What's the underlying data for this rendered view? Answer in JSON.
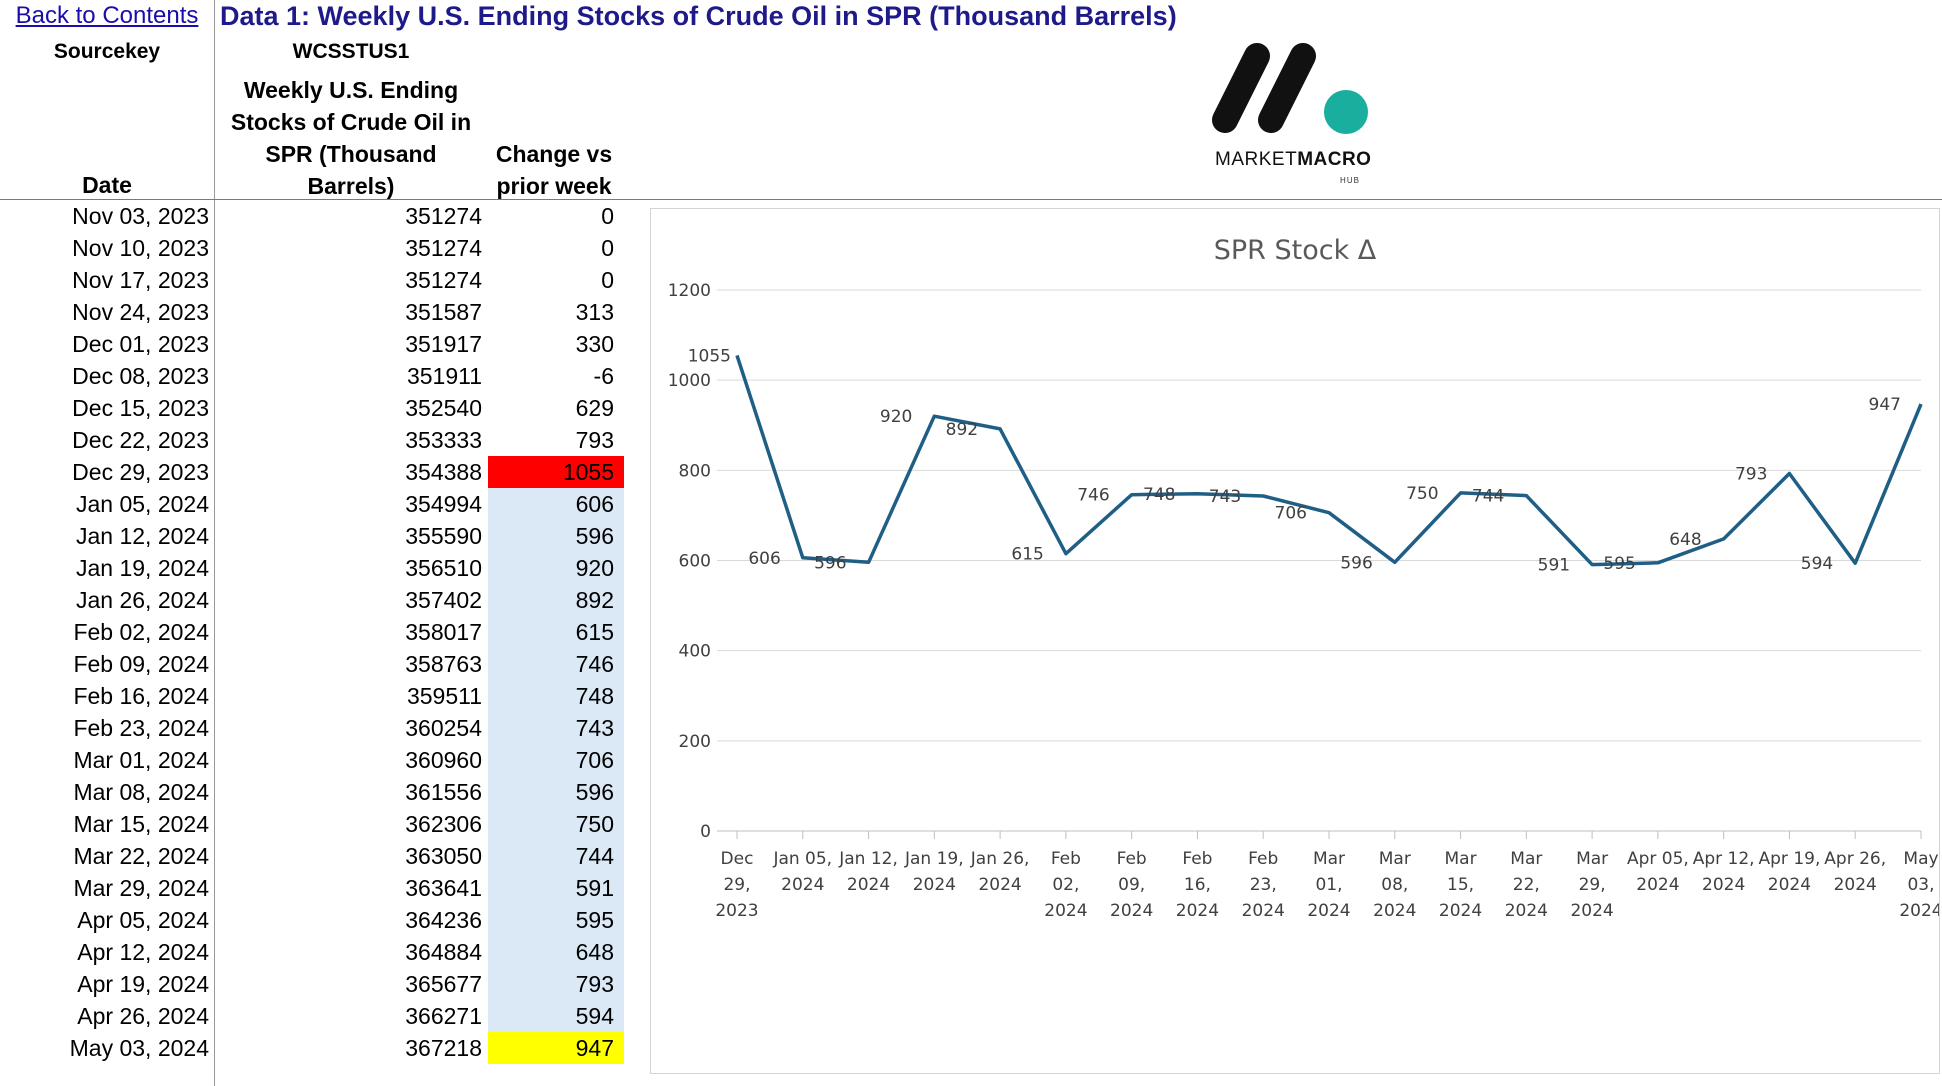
{
  "header": {
    "back_link": "Back to Contents",
    "title": "Data 1: Weekly U.S. Ending Stocks of Crude Oil in SPR  (Thousand Barrels)",
    "sourcekey_label": "Sourcekey",
    "sourcekey_value": "WCSSTUS1"
  },
  "columns": {
    "date": "Date",
    "stocks": [
      "Weekly U.S. Ending",
      "Stocks of Crude Oil in",
      "SPR  (Thousand",
      "Barrels)"
    ],
    "change": [
      "Change vs",
      "prior week"
    ]
  },
  "rows": [
    {
      "date": "Nov 03, 2023",
      "stock": "351274",
      "change": "0",
      "highlight": "none"
    },
    {
      "date": "Nov 10, 2023",
      "stock": "351274",
      "change": "0",
      "highlight": "none"
    },
    {
      "date": "Nov 17, 2023",
      "stock": "351274",
      "change": "0",
      "highlight": "none"
    },
    {
      "date": "Nov 24, 2023",
      "stock": "351587",
      "change": "313",
      "highlight": "none"
    },
    {
      "date": "Dec 01, 2023",
      "stock": "351917",
      "change": "330",
      "highlight": "none"
    },
    {
      "date": "Dec 08, 2023",
      "stock": "351911",
      "change": "-6",
      "highlight": "none"
    },
    {
      "date": "Dec 15, 2023",
      "stock": "352540",
      "change": "629",
      "highlight": "none"
    },
    {
      "date": "Dec 22, 2023",
      "stock": "353333",
      "change": "793",
      "highlight": "none"
    },
    {
      "date": "Dec 29, 2023",
      "stock": "354388",
      "change": "1055",
      "highlight": "red"
    },
    {
      "date": "Jan 05, 2024",
      "stock": "354994",
      "change": "606",
      "highlight": "blue"
    },
    {
      "date": "Jan 12, 2024",
      "stock": "355590",
      "change": "596",
      "highlight": "blue"
    },
    {
      "date": "Jan 19, 2024",
      "stock": "356510",
      "change": "920",
      "highlight": "blue"
    },
    {
      "date": "Jan 26, 2024",
      "stock": "357402",
      "change": "892",
      "highlight": "blue"
    },
    {
      "date": "Feb 02, 2024",
      "stock": "358017",
      "change": "615",
      "highlight": "blue"
    },
    {
      "date": "Feb 09, 2024",
      "stock": "358763",
      "change": "746",
      "highlight": "blue"
    },
    {
      "date": "Feb 16, 2024",
      "stock": "359511",
      "change": "748",
      "highlight": "blue"
    },
    {
      "date": "Feb 23, 2024",
      "stock": "360254",
      "change": "743",
      "highlight": "blue"
    },
    {
      "date": "Mar 01, 2024",
      "stock": "360960",
      "change": "706",
      "highlight": "blue"
    },
    {
      "date": "Mar 08, 2024",
      "stock": "361556",
      "change": "596",
      "highlight": "blue"
    },
    {
      "date": "Mar 15, 2024",
      "stock": "362306",
      "change": "750",
      "highlight": "blue"
    },
    {
      "date": "Mar 22, 2024",
      "stock": "363050",
      "change": "744",
      "highlight": "blue"
    },
    {
      "date": "Mar 29, 2024",
      "stock": "363641",
      "change": "591",
      "highlight": "blue"
    },
    {
      "date": "Apr 05, 2024",
      "stock": "364236",
      "change": "595",
      "highlight": "blue"
    },
    {
      "date": "Apr 12, 2024",
      "stock": "364884",
      "change": "648",
      "highlight": "blue"
    },
    {
      "date": "Apr 19, 2024",
      "stock": "365677",
      "change": "793",
      "highlight": "blue"
    },
    {
      "date": "Apr 26, 2024",
      "stock": "366271",
      "change": "594",
      "highlight": "blue"
    },
    {
      "date": "May 03, 2024",
      "stock": "367218",
      "change": "947",
      "highlight": "yellow"
    }
  ],
  "logo": {
    "text_light": "MARKET",
    "text_bold": "MACRO",
    "sub": "HUB",
    "dot_color": "#1aae9f"
  },
  "colors": {
    "line": "#1f5f85",
    "grid": "#d9d9d9",
    "highlight_red": "#ff0000",
    "highlight_yellow": "#ffff00",
    "highlight_blue": "#dbe8f6"
  },
  "chart_data": {
    "type": "line",
    "title": "SPR Stock Δ",
    "xlabel": "",
    "ylabel": "",
    "ylim": [
      0,
      1200
    ],
    "yticks": [
      0,
      200,
      400,
      600,
      800,
      1000,
      1200
    ],
    "grid": true,
    "legend": "none",
    "categories": [
      [
        "Dec",
        "29,",
        "2023"
      ],
      [
        "Jan 05,",
        "2024"
      ],
      [
        "Jan 12,",
        "2024"
      ],
      [
        "Jan 19,",
        "2024"
      ],
      [
        "Jan 26,",
        "2024"
      ],
      [
        "Feb",
        "02,",
        "2024"
      ],
      [
        "Feb",
        "09,",
        "2024"
      ],
      [
        "Feb",
        "16,",
        "2024"
      ],
      [
        "Feb",
        "23,",
        "2024"
      ],
      [
        "Mar",
        "01,",
        "2024"
      ],
      [
        "Mar",
        "08,",
        "2024"
      ],
      [
        "Mar",
        "15,",
        "2024"
      ],
      [
        "Mar",
        "22,",
        "2024"
      ],
      [
        "Mar",
        "29,",
        "2024"
      ],
      [
        "Apr 05,",
        "2024"
      ],
      [
        "Apr 12,",
        "2024"
      ],
      [
        "Apr 19,",
        "2024"
      ],
      [
        "Apr 26,",
        "2024"
      ],
      [
        "May",
        "03,",
        "2024"
      ]
    ],
    "series": [
      {
        "name": "Change vs prior week",
        "values": [
          1055,
          606,
          596,
          920,
          892,
          615,
          746,
          748,
          743,
          706,
          596,
          750,
          744,
          591,
          595,
          648,
          793,
          594,
          947
        ]
      }
    ]
  }
}
